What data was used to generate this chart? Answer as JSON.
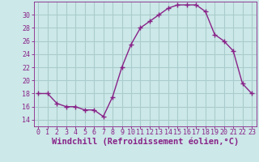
{
  "x": [
    0,
    1,
    2,
    3,
    4,
    5,
    6,
    7,
    8,
    9,
    10,
    11,
    12,
    13,
    14,
    15,
    16,
    17,
    18,
    19,
    20,
    21,
    22,
    23
  ],
  "y": [
    18,
    18,
    16.5,
    16,
    16,
    15.5,
    15.5,
    14.5,
    17.5,
    22,
    25.5,
    28,
    29,
    30,
    31,
    31.5,
    31.5,
    31.5,
    30.5,
    27,
    26,
    24.5,
    19.5,
    18
  ],
  "line_color": "#882288",
  "marker": "+",
  "marker_size": 4,
  "background_color": "#cce8e8",
  "grid_color": "#aacccc",
  "xlabel": "Windchill (Refroidissement éolien,°C)",
  "ylim": [
    13,
    32
  ],
  "xlim": [
    -0.5,
    23.5
  ],
  "yticks": [
    14,
    16,
    18,
    20,
    22,
    24,
    26,
    28,
    30
  ],
  "xticks": [
    0,
    1,
    2,
    3,
    4,
    5,
    6,
    7,
    8,
    9,
    10,
    11,
    12,
    13,
    14,
    15,
    16,
    17,
    18,
    19,
    20,
    21,
    22,
    23
  ],
  "axis_color": "#882288",
  "tick_color": "#882288",
  "label_fontsize": 7.5,
  "tick_fontsize": 6,
  "ylabel_fontsize": 6,
  "linewidth": 1.0,
  "marker_linewidth": 1.0
}
